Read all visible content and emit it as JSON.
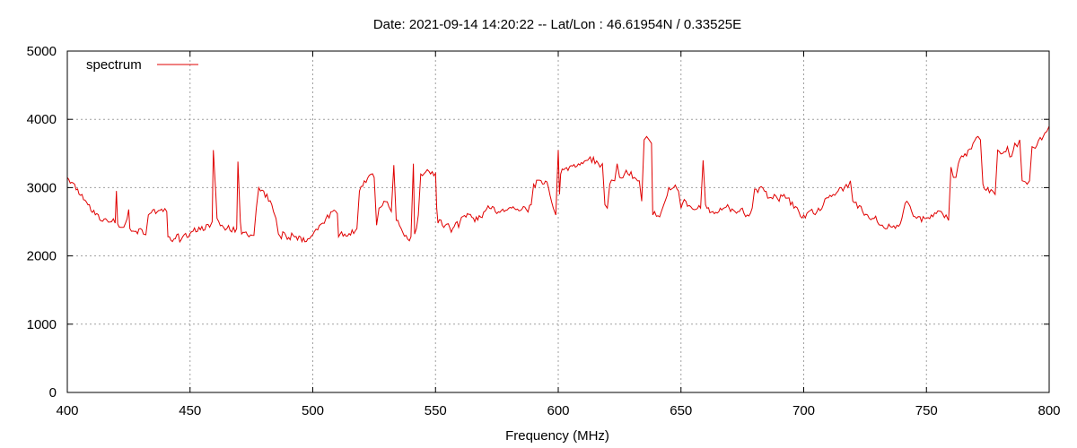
{
  "chart_data": {
    "type": "line",
    "title": "Date: 2021-09-14 14:20:22  --  Lat/Lon : 46.61954N / 0.33525E",
    "xlabel": "Frequency (MHz)",
    "ylabel": "",
    "xlim": [
      400,
      800
    ],
    "ylim": [
      0,
      5000
    ],
    "x_ticks": [
      400,
      450,
      500,
      550,
      600,
      650,
      700,
      750,
      800
    ],
    "y_ticks": [
      0,
      1000,
      2000,
      3000,
      4000,
      5000
    ],
    "grid": true,
    "legend_position": "top-left",
    "series": [
      {
        "name": "spectrum",
        "color": "#e00000",
        "points": [
          [
            400,
            3150
          ],
          [
            403,
            3050
          ],
          [
            406,
            2900
          ],
          [
            409,
            2750
          ],
          [
            412,
            2620
          ],
          [
            415,
            2540
          ],
          [
            418,
            2500
          ],
          [
            419.5,
            2480
          ],
          [
            420,
            2950
          ],
          [
            420.5,
            2470
          ],
          [
            423,
            2420
          ],
          [
            425,
            2680
          ],
          [
            425.5,
            2400
          ],
          [
            428,
            2360
          ],
          [
            431,
            2320
          ],
          [
            432,
            2310
          ],
          [
            433,
            2600
          ],
          [
            436,
            2620
          ],
          [
            439,
            2650
          ],
          [
            440.5,
            2650
          ],
          [
            441,
            2280
          ],
          [
            444,
            2250
          ],
          [
            447,
            2280
          ],
          [
            450,
            2330
          ],
          [
            453,
            2360
          ],
          [
            456,
            2380
          ],
          [
            458,
            2420
          ],
          [
            459,
            2500
          ],
          [
            459.5,
            3550
          ],
          [
            460.5,
            2900
          ],
          [
            461,
            2550
          ],
          [
            463,
            2450
          ],
          [
            465,
            2400
          ],
          [
            467,
            2350
          ],
          [
            469,
            2400
          ],
          [
            469.5,
            3380
          ],
          [
            470.5,
            2500
          ],
          [
            471,
            2320
          ],
          [
            474,
            2280
          ],
          [
            476,
            2300
          ],
          [
            477,
            2700
          ],
          [
            478,
            3000
          ],
          [
            480,
            2950
          ],
          [
            482,
            2800
          ],
          [
            484,
            2650
          ],
          [
            485,
            2550
          ],
          [
            486,
            2320
          ],
          [
            489,
            2300
          ],
          [
            492,
            2300
          ],
          [
            495,
            2280
          ],
          [
            498,
            2250
          ],
          [
            500,
            2310
          ],
          [
            502,
            2380
          ],
          [
            504,
            2480
          ],
          [
            506,
            2600
          ],
          [
            508,
            2650
          ],
          [
            510,
            2620
          ],
          [
            510.5,
            2280
          ],
          [
            513,
            2320
          ],
          [
            516,
            2380
          ],
          [
            518,
            2400
          ],
          [
            519,
            2950
          ],
          [
            521,
            3100
          ],
          [
            523,
            3180
          ],
          [
            525,
            3150
          ],
          [
            526,
            2450
          ],
          [
            527,
            2700
          ],
          [
            529,
            2800
          ],
          [
            531,
            2720
          ],
          [
            532,
            2650
          ],
          [
            533,
            3330
          ],
          [
            534,
            2520
          ],
          [
            536,
            2400
          ],
          [
            538,
            2300
          ],
          [
            540,
            2280
          ],
          [
            541,
            3350
          ],
          [
            541.5,
            2320
          ],
          [
            543,
            2600
          ],
          [
            544,
            3200
          ],
          [
            546,
            3230
          ],
          [
            548,
            3200
          ],
          [
            550,
            3210
          ],
          [
            550.5,
            2700
          ],
          [
            551,
            2480
          ],
          [
            554,
            2450
          ],
          [
            557,
            2400
          ],
          [
            560,
            2500
          ],
          [
            563,
            2620
          ],
          [
            566,
            2500
          ],
          [
            569,
            2560
          ],
          [
            572,
            2700
          ],
          [
            575,
            2620
          ],
          [
            578,
            2650
          ],
          [
            581,
            2700
          ],
          [
            584,
            2660
          ],
          [
            587,
            2680
          ],
          [
            589,
            2750
          ],
          [
            590,
            3050
          ],
          [
            593,
            3100
          ],
          [
            596,
            3000
          ],
          [
            598,
            2700
          ],
          [
            599,
            2600
          ],
          [
            600,
            3550
          ],
          [
            600.5,
            2900
          ],
          [
            601,
            3200
          ],
          [
            604,
            3250
          ],
          [
            607,
            3300
          ],
          [
            610,
            3350
          ],
          [
            612,
            3400
          ],
          [
            613,
            3450
          ],
          [
            615,
            3350
          ],
          [
            617,
            3300
          ],
          [
            618,
            3350
          ],
          [
            619,
            2750
          ],
          [
            620,
            2700
          ],
          [
            621,
            3050
          ],
          [
            623,
            3100
          ],
          [
            624,
            3350
          ],
          [
            625,
            3150
          ],
          [
            627,
            3200
          ],
          [
            629,
            3180
          ],
          [
            631,
            3150
          ],
          [
            633,
            3100
          ],
          [
            634,
            2800
          ],
          [
            635,
            3700
          ],
          [
            636,
            3750
          ],
          [
            637,
            3700
          ],
          [
            638,
            3650
          ],
          [
            638.5,
            2600
          ],
          [
            640,
            2580
          ],
          [
            642,
            2650
          ],
          [
            643,
            2750
          ],
          [
            645,
            3000
          ],
          [
            647,
            3000
          ],
          [
            649,
            2950
          ],
          [
            650,
            2700
          ],
          [
            652,
            2800
          ],
          [
            654,
            2720
          ],
          [
            656,
            2680
          ],
          [
            658,
            2700
          ],
          [
            659,
            3400
          ],
          [
            660,
            2750
          ],
          [
            663,
            2650
          ],
          [
            666,
            2700
          ],
          [
            669,
            2750
          ],
          [
            672,
            2650
          ],
          [
            675,
            2700
          ],
          [
            677,
            2600
          ],
          [
            679,
            2700
          ],
          [
            680,
            2980
          ],
          [
            682,
            3000
          ],
          [
            684,
            2950
          ],
          [
            686,
            2850
          ],
          [
            688,
            2900
          ],
          [
            690,
            2800
          ],
          [
            692,
            2900
          ],
          [
            694,
            2850
          ],
          [
            696,
            2700
          ],
          [
            698,
            2650
          ],
          [
            700,
            2600
          ],
          [
            702,
            2650
          ],
          [
            704,
            2620
          ],
          [
            706,
            2700
          ],
          [
            708,
            2750
          ],
          [
            710,
            2850
          ],
          [
            712,
            2900
          ],
          [
            714,
            2950
          ],
          [
            716,
            2950
          ],
          [
            718,
            3000
          ],
          [
            719,
            3100
          ],
          [
            720,
            2800
          ],
          [
            722,
            2700
          ],
          [
            724,
            2650
          ],
          [
            726,
            2600
          ],
          [
            728,
            2550
          ],
          [
            730,
            2500
          ],
          [
            732,
            2450
          ],
          [
            734,
            2400
          ],
          [
            736,
            2420
          ],
          [
            738,
            2450
          ],
          [
            740,
            2550
          ],
          [
            742,
            2800
          ],
          [
            744,
            2650
          ],
          [
            746,
            2550
          ],
          [
            748,
            2500
          ],
          [
            750,
            2550
          ],
          [
            752,
            2600
          ],
          [
            754,
            2620
          ],
          [
            756,
            2650
          ],
          [
            758,
            2600
          ],
          [
            759,
            2520
          ],
          [
            760,
            3300
          ],
          [
            761,
            3150
          ],
          [
            762,
            3150
          ],
          [
            763,
            3350
          ],
          [
            765,
            3450
          ],
          [
            767,
            3550
          ],
          [
            769,
            3650
          ],
          [
            771,
            3750
          ],
          [
            772,
            3700
          ],
          [
            773,
            3050
          ],
          [
            775,
            3000
          ],
          [
            777,
            2950
          ],
          [
            778,
            2900
          ],
          [
            779,
            3550
          ],
          [
            781,
            3500
          ],
          [
            783,
            3600
          ],
          [
            784,
            3450
          ],
          [
            786,
            3650
          ],
          [
            787,
            3600
          ],
          [
            788,
            3700
          ],
          [
            789,
            3100
          ],
          [
            791,
            3050
          ],
          [
            792,
            3100
          ],
          [
            793,
            3600
          ],
          [
            795,
            3620
          ],
          [
            797,
            3700
          ],
          [
            799,
            3820
          ],
          [
            800,
            3900
          ]
        ]
      }
    ]
  }
}
